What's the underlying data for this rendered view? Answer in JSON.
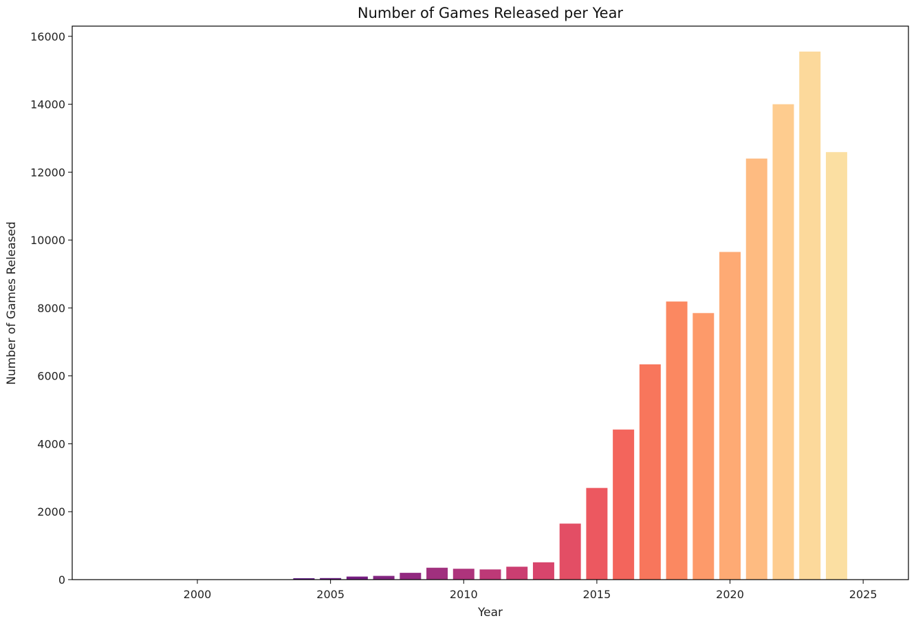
{
  "chart_data": {
    "type": "bar",
    "title": "Number of Games Released per Year",
    "xlabel": "Year",
    "ylabel": "Number of Games Released",
    "xlim": [
      1995.3,
      2026.7
    ],
    "ylim": [
      0,
      16300
    ],
    "xticks": [
      2000,
      2005,
      2010,
      2015,
      2020,
      2025
    ],
    "yticks": [
      0,
      2000,
      4000,
      6000,
      8000,
      10000,
      12000,
      14000,
      16000
    ],
    "grid": false,
    "legend": "none",
    "x": [
      1997,
      1998,
      1999,
      2000,
      2001,
      2002,
      2003,
      2004,
      2005,
      2006,
      2007,
      2008,
      2009,
      2010,
      2011,
      2012,
      2013,
      2014,
      2015,
      2016,
      2017,
      2018,
      2019,
      2020,
      2021,
      2022,
      2023,
      2024
    ],
    "values": [
      2,
      1,
      3,
      2,
      3,
      3,
      8,
      40,
      45,
      90,
      110,
      200,
      350,
      320,
      300,
      380,
      510,
      1650,
      2700,
      4420,
      6340,
      8190,
      7850,
      9650,
      12400,
      14000,
      15550,
      12590
    ],
    "colors": [
      "#000004",
      "#07061c",
      "#110a30",
      "#1d1147",
      "#2b115e",
      "#3b0f70",
      "#4a1079",
      "#59157e",
      "#66197f",
      "#751d81",
      "#832681",
      "#922980",
      "#a0307e",
      "#ae347c",
      "#bd3977",
      "#cb3e71",
      "#d8456c",
      "#e34e65",
      "#ec5860",
      "#f3655c",
      "#f8765c",
      "#fb8861",
      "#fd9a6a",
      "#feaa74",
      "#febb81",
      "#fecc8f",
      "#fcd99b",
      "#fbdfa2"
    ]
  }
}
